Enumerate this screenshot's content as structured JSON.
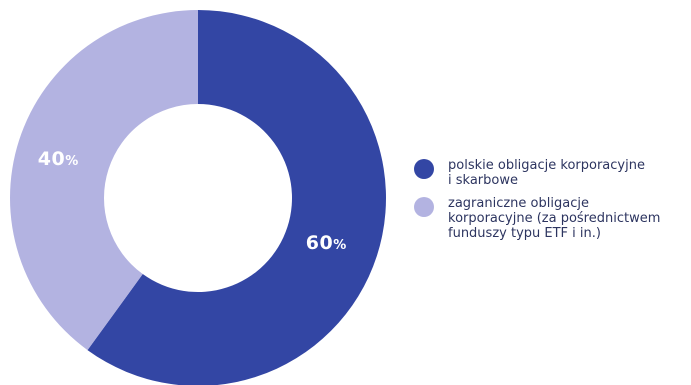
{
  "chart_data": {
    "type": "pie",
    "variant": "donut",
    "slices": [
      {
        "name": "polskie obligacje korporacyjne\ni skarbowe",
        "value": 60,
        "label_number": "60",
        "label_unit": "%",
        "color": "#3346a4"
      },
      {
        "name": "zagraniczne obligacje\nkorporacyjne (za pośrednictwem\nfunduszy typu ETF i in.)",
        "value": 40,
        "label_number": "40",
        "label_unit": "%",
        "color": "#b3b3e1"
      }
    ],
    "legend_position": "right"
  }
}
